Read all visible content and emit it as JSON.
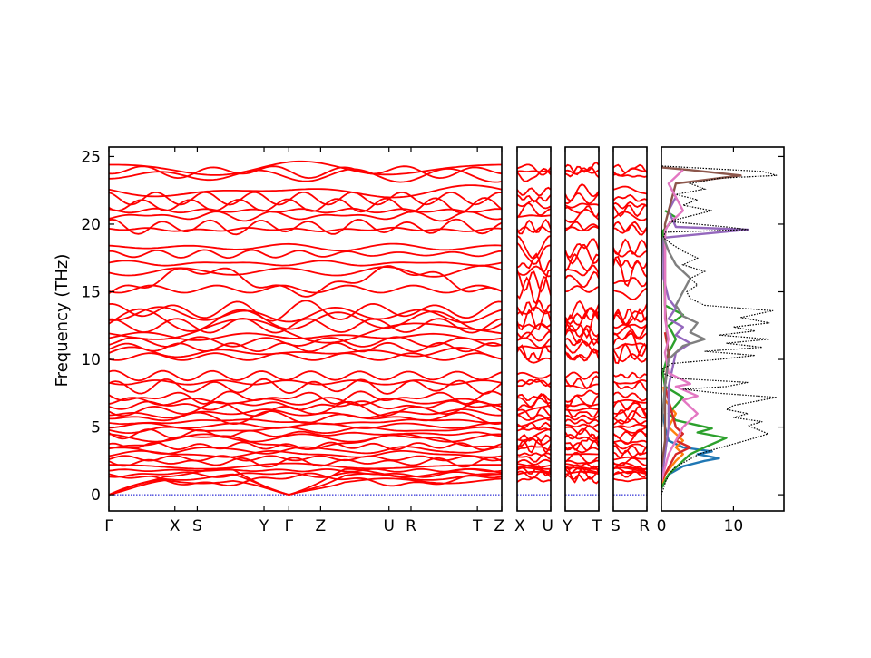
{
  "chart_data": {
    "type": "line",
    "title": "",
    "ylabel": "Frequency (THz)",
    "ylim": [
      -1.2,
      25.7
    ],
    "yticks": [
      0,
      5,
      10,
      15,
      20,
      25
    ],
    "grid": false,
    "legend": "none",
    "colors": {
      "bands": "#ff0000",
      "zero_line": "#0000cc",
      "frame": "#000000",
      "dos_total": "#000000",
      "dos_partial": [
        "#1f77b4",
        "#ff7f0e",
        "#2ca02c",
        "#d62728",
        "#9467bd",
        "#8c564b",
        "#e377c2",
        "#7f7f7f"
      ]
    },
    "band_segments": [
      {
        "path": [
          "Γ",
          "X",
          "S",
          "Y",
          "Γ",
          "Z",
          "U",
          "R",
          "T",
          "Z"
        ],
        "tick_pos": [
          0,
          0.168,
          0.225,
          0.395,
          0.458,
          0.539,
          0.713,
          0.769,
          0.938,
          1.0
        ]
      },
      {
        "path": [
          "X",
          "U"
        ],
        "tick_pos": [
          0,
          1
        ]
      },
      {
        "path": [
          "Y",
          "T"
        ],
        "tick_pos": [
          0,
          1
        ]
      },
      {
        "path": [
          "S",
          "R"
        ],
        "tick_pos": [
          0,
          1
        ]
      }
    ],
    "band_frequencies_at_gamma": [
      0,
      0,
      0,
      1.1,
      1.5,
      1.8,
      2.1,
      2.4,
      2.7,
      3.0,
      3.3,
      3.6,
      3.9,
      4.2,
      4.5,
      4.8,
      5.1,
      5.4,
      5.7,
      6.0,
      6.3,
      6.6,
      6.9,
      7.2,
      8.0,
      8.3,
      8.8,
      10.2,
      10.5,
      10.9,
      11.3,
      11.7,
      12.1,
      12.5,
      12.9,
      13.3,
      13.6,
      15.2,
      15.8,
      16.5,
      17.1,
      17.8,
      18.3,
      19.6,
      19.8,
      20.6,
      21.0,
      21.4,
      21.9,
      22.4,
      23.6,
      23.9,
      24.1
    ],
    "dos": {
      "xlim": [
        0,
        17
      ],
      "xticks": [
        0,
        10
      ],
      "total": [
        [
          0,
          0
        ],
        [
          0.3,
          0.5
        ],
        [
          0.6,
          1
        ],
        [
          1.1,
          1.5
        ],
        [
          1.8,
          2
        ],
        [
          3.5,
          2.5
        ],
        [
          5.2,
          3
        ],
        [
          7,
          3.3
        ],
        [
          9,
          3.6
        ],
        [
          11,
          3.9
        ],
        [
          13,
          4.2
        ],
        [
          14.8,
          4.5
        ],
        [
          13.5,
          4.8
        ],
        [
          12,
          5.1
        ],
        [
          14,
          5.4
        ],
        [
          10,
          5.7
        ],
        [
          12,
          6
        ],
        [
          9,
          6.3
        ],
        [
          10,
          6.6
        ],
        [
          13,
          6.9
        ],
        [
          16,
          7.2
        ],
        [
          8,
          7.5
        ],
        [
          3,
          7.8
        ],
        [
          9,
          8
        ],
        [
          12,
          8.3
        ],
        [
          2,
          8.6
        ],
        [
          0.5,
          8.9
        ],
        [
          0.2,
          9.3
        ],
        [
          1.5,
          9.7
        ],
        [
          8,
          10
        ],
        [
          13,
          10.3
        ],
        [
          6,
          10.6
        ],
        [
          14,
          10.9
        ],
        [
          9,
          11.2
        ],
        [
          15,
          11.5
        ],
        [
          8,
          11.8
        ],
        [
          13,
          12.1
        ],
        [
          10,
          12.4
        ],
        [
          15,
          12.7
        ],
        [
          11,
          13.1
        ],
        [
          15.5,
          13.6
        ],
        [
          6,
          14
        ],
        [
          4,
          14.5
        ],
        [
          3.5,
          15
        ],
        [
          5,
          15.5
        ],
        [
          4,
          16
        ],
        [
          6,
          16.5
        ],
        [
          3,
          17
        ],
        [
          5,
          17.5
        ],
        [
          3,
          18
        ],
        [
          1.5,
          18.5
        ],
        [
          0.3,
          19
        ],
        [
          0.5,
          19.4
        ],
        [
          12,
          19.6
        ],
        [
          9,
          19.8
        ],
        [
          1,
          20.2
        ],
        [
          4,
          20.6
        ],
        [
          7,
          21
        ],
        [
          3,
          21.4
        ],
        [
          5,
          21.8
        ],
        [
          2,
          22.2
        ],
        [
          6,
          22.6
        ],
        [
          4,
          23
        ],
        [
          8,
          23.4
        ],
        [
          16,
          23.6
        ],
        [
          14,
          23.9
        ],
        [
          7,
          24.1
        ],
        [
          0,
          24.3
        ]
      ],
      "partial": [
        [
          [
            0,
            0.5
          ],
          [
            1,
            1.5
          ],
          [
            3,
            2.1
          ],
          [
            6,
            2.5
          ],
          [
            8,
            2.7
          ],
          [
            5,
            3
          ],
          [
            7,
            3.2
          ],
          [
            3,
            3.5
          ],
          [
            1,
            4
          ],
          [
            0.5,
            5
          ],
          [
            0.2,
            6
          ]
        ],
        [
          [
            0,
            0.5
          ],
          [
            0.5,
            1.5
          ],
          [
            2,
            2.5
          ],
          [
            3,
            3
          ],
          [
            2,
            3.5
          ],
          [
            3,
            4
          ],
          [
            1,
            5
          ],
          [
            2,
            6
          ],
          [
            0.5,
            7
          ],
          [
            0.3,
            8
          ]
        ],
        [
          [
            0,
            0.5
          ],
          [
            1,
            1.5
          ],
          [
            3,
            2.5
          ],
          [
            4,
            3
          ],
          [
            6,
            3.5
          ],
          [
            9,
            4.2
          ],
          [
            5,
            4.6
          ],
          [
            7,
            4.9
          ],
          [
            2,
            5.5
          ],
          [
            1,
            6
          ],
          [
            3,
            7.2
          ],
          [
            0.5,
            8
          ],
          [
            0.2,
            9
          ],
          [
            1,
            10.5
          ],
          [
            2,
            11.5
          ],
          [
            1,
            12.5
          ],
          [
            3,
            13.3
          ],
          [
            0.5,
            14
          ],
          [
            0.2,
            19.5
          ],
          [
            2,
            20.5
          ],
          [
            0.5,
            21
          ]
        ],
        [
          [
            0,
            1
          ],
          [
            1,
            2
          ],
          [
            2,
            3
          ],
          [
            4,
            3.5
          ],
          [
            2,
            4
          ],
          [
            3,
            4.5
          ],
          [
            2,
            5
          ],
          [
            1.5,
            6
          ],
          [
            1,
            7
          ],
          [
            0.5,
            8
          ],
          [
            1,
            10.5
          ],
          [
            0.5,
            12
          ]
        ],
        [
          [
            0,
            1
          ],
          [
            0.5,
            3
          ],
          [
            1,
            5
          ],
          [
            1,
            8
          ],
          [
            2,
            10.5
          ],
          [
            4,
            11.2
          ],
          [
            2,
            11.8
          ],
          [
            3,
            12.4
          ],
          [
            1,
            13
          ],
          [
            2,
            13.8
          ],
          [
            1,
            14.5
          ],
          [
            0.3,
            16
          ],
          [
            0.3,
            19
          ],
          [
            12,
            19.6
          ],
          [
            2,
            19.8
          ],
          [
            1,
            21
          ],
          [
            2,
            22
          ],
          [
            1,
            23
          ]
        ],
        [
          [
            0,
            2
          ],
          [
            0.5,
            4
          ],
          [
            0.5,
            8
          ],
          [
            1,
            10
          ],
          [
            0.5,
            14
          ],
          [
            0.5,
            20
          ],
          [
            2,
            23
          ],
          [
            11,
            23.6
          ],
          [
            4,
            24
          ],
          [
            0,
            24.2
          ]
        ],
        [
          [
            0,
            1
          ],
          [
            1,
            3
          ],
          [
            2,
            4
          ],
          [
            3,
            5
          ],
          [
            5,
            6
          ],
          [
            4,
            6.5
          ],
          [
            3,
            7
          ],
          [
            5,
            7.3
          ],
          [
            2,
            8
          ],
          [
            4,
            8.2
          ],
          [
            1,
            9
          ],
          [
            0.5,
            10.5
          ],
          [
            1,
            11.5
          ],
          [
            0.5,
            13
          ],
          [
            0.5,
            19.5
          ],
          [
            1,
            20
          ],
          [
            3,
            21
          ],
          [
            2,
            22
          ],
          [
            1,
            23
          ],
          [
            3,
            24
          ]
        ],
        [
          [
            0,
            5
          ],
          [
            0.5,
            8
          ],
          [
            1,
            10
          ],
          [
            3,
            11
          ],
          [
            6,
            11.5
          ],
          [
            4,
            12
          ],
          [
            5,
            12.7
          ],
          [
            3,
            13.2
          ],
          [
            2,
            14
          ],
          [
            3,
            15
          ],
          [
            4,
            16
          ],
          [
            2,
            17
          ],
          [
            1,
            18
          ],
          [
            0.3,
            19
          ]
        ]
      ]
    }
  }
}
